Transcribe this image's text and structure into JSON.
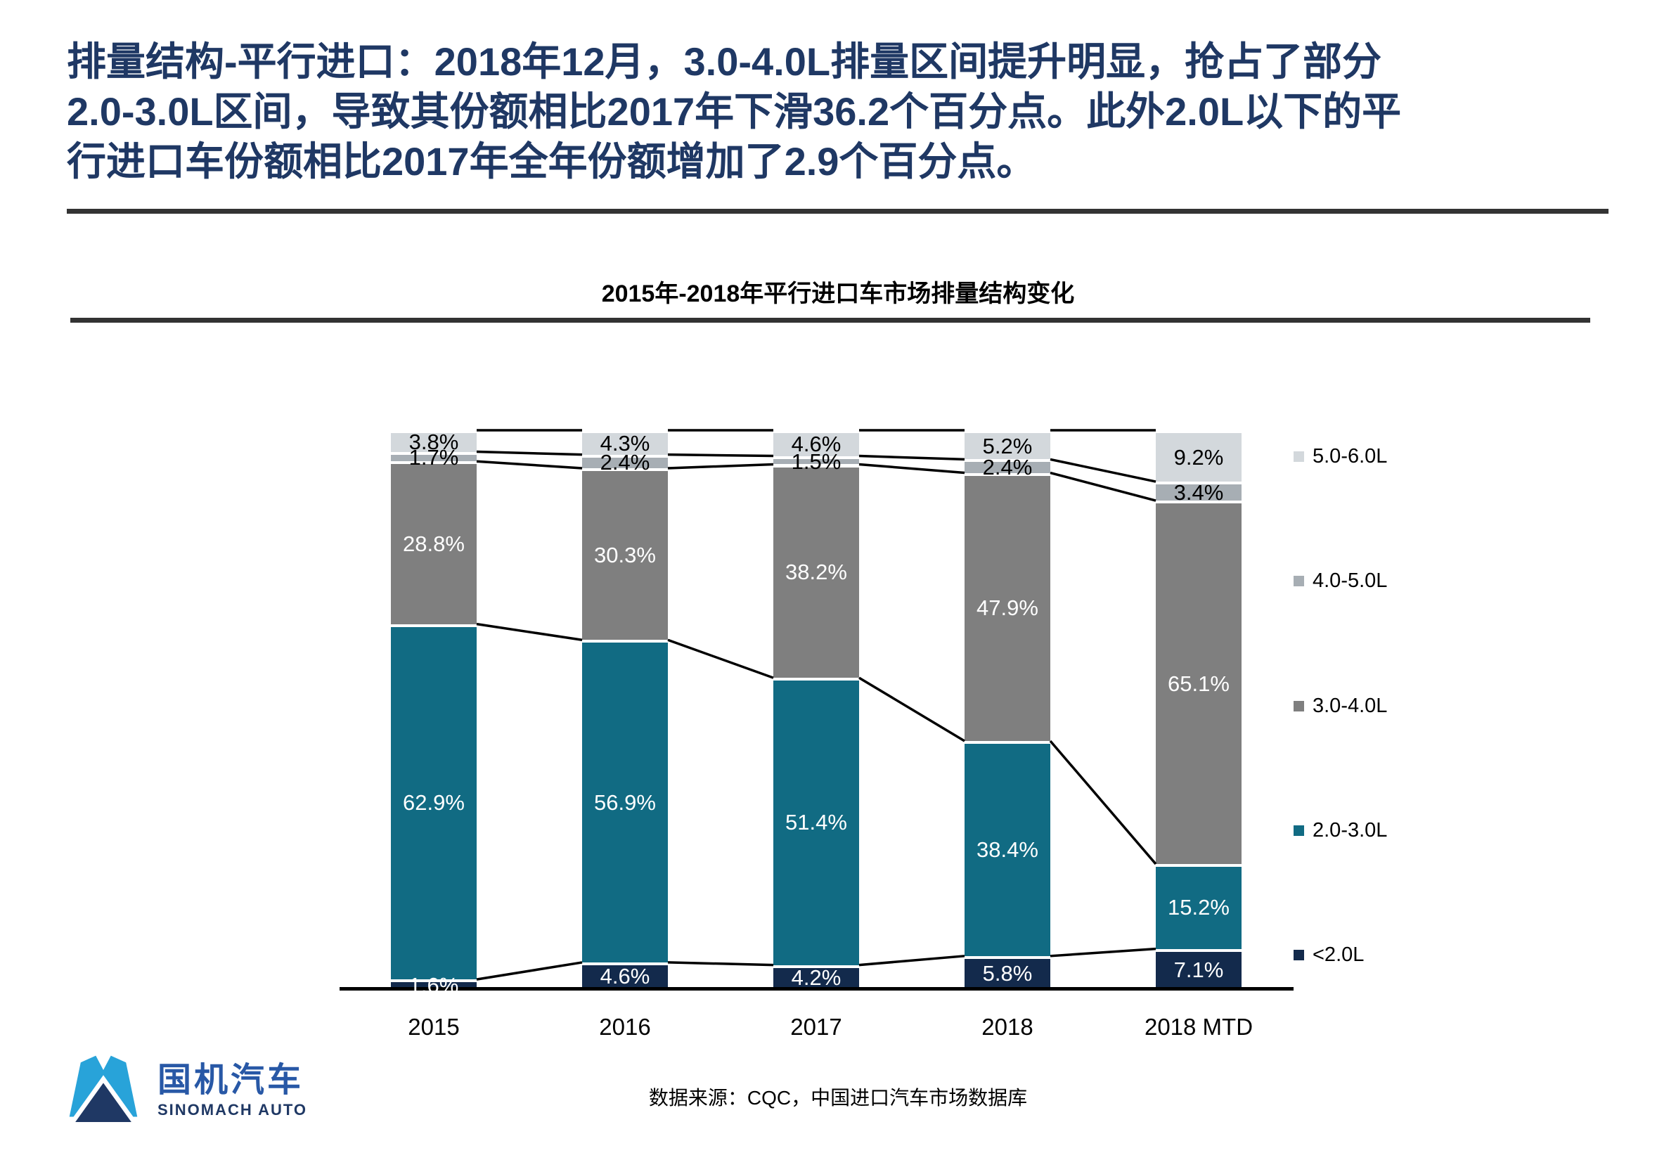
{
  "slide": {
    "title_lines": [
      "排量结构-平行进口：2018年12月，3.0-4.0L排量区间提升明显，抢占了部分",
      "2.0-3.0L区间，导致其份额相比2017年下滑36.2个百分点。此外2.0L以下的平",
      "行进口车份额相比2017年全年份额增加了2.9个百分点。"
    ],
    "title_color": "#1f3864"
  },
  "chart_data": {
    "type": "bar",
    "subtype": "stacked-100-percent",
    "title": "2015年-2018年平行进口车市场排量结构变化",
    "categories": [
      "2015",
      "2016",
      "2017",
      "2018",
      "2018 MTD"
    ],
    "series": [
      {
        "name": "<2.0L",
        "color": "#132a4c",
        "label_color": "#ffffff",
        "values": [
          1.6,
          4.6,
          4.2,
          5.8,
          7.1
        ]
      },
      {
        "name": "2.0-3.0L",
        "color": "#116b83",
        "label_color": "#ffffff",
        "values": [
          62.9,
          56.9,
          51.4,
          38.4,
          15.2
        ]
      },
      {
        "name": "3.0-4.0L",
        "color": "#7f7f7f",
        "label_color": "#ffffff",
        "values": [
          28.8,
          30.3,
          38.2,
          47.9,
          65.1
        ]
      },
      {
        "name": "4.0-5.0L",
        "color": "#a7aeb4",
        "label_color": "#000000",
        "values": [
          1.7,
          2.4,
          1.5,
          2.4,
          3.4
        ]
      },
      {
        "name": "5.0-6.0L",
        "color": "#d3d8dc",
        "label_color": "#000000",
        "values": [
          3.8,
          4.3,
          4.6,
          5.2,
          9.2
        ]
      }
    ],
    "value_suffix": "%",
    "ylim": [
      0,
      100
    ],
    "grid": false,
    "legend_position": "right",
    "legend_order_top_to_bottom": [
      "5.0-6.0L",
      "4.0-5.0L",
      "3.0-4.0L",
      "2.0-3.0L",
      "<2.0L"
    ],
    "connector_lines": true,
    "connector_color": "#000000",
    "axis_color": "#000000"
  },
  "footer": {
    "source": "数据来源：CQC，中国进口汽车市场数据库",
    "logo_cn": "国机汽车",
    "logo_en": "SINOMACH AUTO"
  }
}
